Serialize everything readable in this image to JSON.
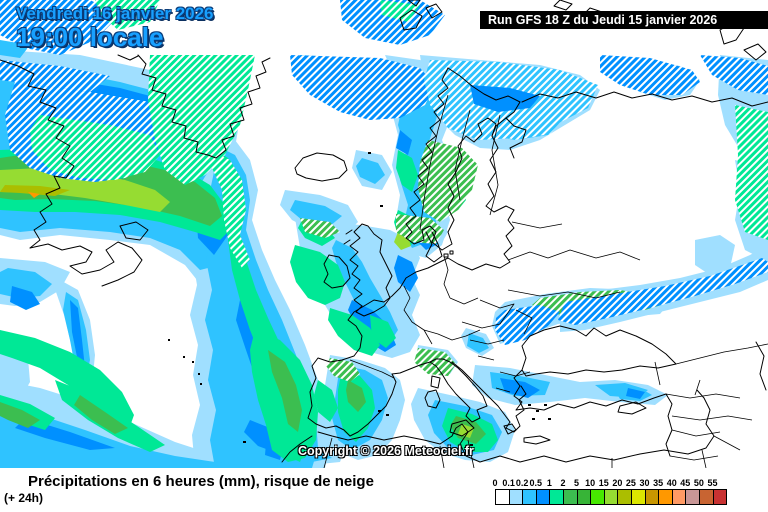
{
  "header": {
    "date_line": "Vendredi 16 janvier 2026",
    "time_line": "19:00 locale",
    "run_banner": "Run GFS 18 Z du Jeudi 15 janvier 2026"
  },
  "map": {
    "copyright": "Copyright © 2026 Meteociel.fr"
  },
  "footer": {
    "title": "Précipitations en 6 heures (mm), risque de neige",
    "subtitle": "(+ 24h)"
  },
  "legend": {
    "entries": [
      {
        "label": "0",
        "color": "#FFFFFF"
      },
      {
        "label": "0.1",
        "color": "#A0DFFF"
      },
      {
        "label": "0.2",
        "color": "#2FC3FF"
      },
      {
        "label": "0.5",
        "color": "#0090FF"
      },
      {
        "label": "1",
        "color": "#00E896"
      },
      {
        "label": "2",
        "color": "#3CBE50"
      },
      {
        "label": "5",
        "color": "#37B437"
      },
      {
        "label": "10",
        "color": "#47E800"
      },
      {
        "label": "15",
        "color": "#96DC32"
      },
      {
        "label": "20",
        "color": "#ABBE00"
      },
      {
        "label": "25",
        "color": "#DCE600"
      },
      {
        "label": "30",
        "color": "#C89600"
      },
      {
        "label": "35",
        "color": "#FF9800"
      },
      {
        "label": "40",
        "color": "#FF9A64"
      },
      {
        "label": "45",
        "color": "#C89696"
      },
      {
        "label": "50",
        "color": "#C86432"
      },
      {
        "label": "55",
        "color": "#C83232"
      }
    ]
  },
  "colors": {
    "accent_text": "#18A0FF",
    "banner_bg": "#000000"
  }
}
